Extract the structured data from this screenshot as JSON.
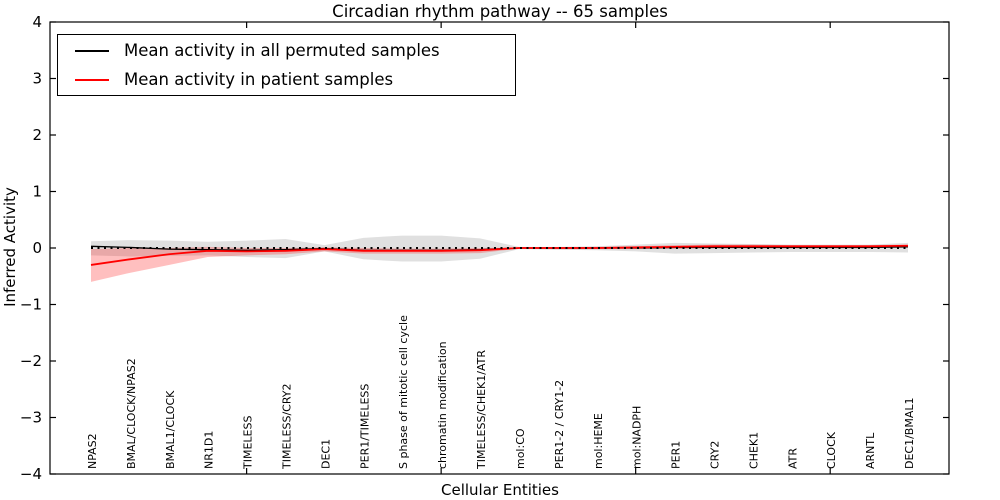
{
  "title": "Circadian rhythm pathway -- 65 samples",
  "legend": {
    "items": [
      {
        "label": "Mean activity in all permuted samples",
        "color": "#000000"
      },
      {
        "label": "Mean activity in patient samples",
        "color": "#ff0000"
      }
    ],
    "position": "upper-left",
    "border_color": "#000000"
  },
  "chart_data": {
    "type": "line",
    "title": "Circadian rhythm pathway -- 65 samples",
    "xlabel": "Cellular Entities",
    "ylabel": "Inferred Activity",
    "ylim": [
      -4,
      4
    ],
    "yticks": [
      4,
      3,
      2,
      1,
      0,
      -1,
      -2,
      -3,
      -4
    ],
    "grid": false,
    "categories": [
      "NPAS2",
      "BMAL/CLOCK/NPAS2",
      "BMAL1/CLOCK",
      "NR1D1",
      "TIMELESS",
      "TIMELESS/CRY2",
      "DEC1",
      "PER1/TIMELESS",
      "S phase of mitotic cell cycle",
      "chromatin modification",
      "TIMELESS/CHEK1/ATR",
      "mol:CO",
      "PER1-2 / CRY1-2",
      "mol:HEME",
      "mol:NADPH",
      "PER1",
      "CRY2",
      "CHEK1",
      "ATR",
      "CLOCK",
      "ARNTL",
      "DEC1/BMAL1"
    ],
    "xtick_indices": [
      4,
      9,
      14,
      19
    ],
    "zero_line": {
      "y": 0,
      "style": "dotted",
      "color": "#000000"
    },
    "series": [
      {
        "name": "Mean activity in all permuted samples",
        "color": "#000000",
        "values": [
          0.03,
          0.01,
          -0.02,
          -0.03,
          -0.04,
          -0.03,
          -0.01,
          -0.04,
          -0.04,
          -0.04,
          -0.03,
          0.0,
          0.0,
          0.0,
          0.0,
          0.01,
          0.01,
          0.01,
          0.01,
          0.01,
          0.01,
          0.02
        ]
      },
      {
        "name": "Mean activity in patient samples",
        "color": "#ff0000",
        "values": [
          -0.3,
          -0.2,
          -0.11,
          -0.05,
          -0.06,
          -0.05,
          -0.02,
          -0.05,
          -0.05,
          -0.05,
          -0.04,
          0.0,
          0.0,
          0.0,
          0.01,
          0.02,
          0.03,
          0.03,
          0.03,
          0.03,
          0.03,
          0.04
        ]
      }
    ],
    "bands": [
      {
        "name": "permuted-range",
        "color": "#000000",
        "opacity": 0.12,
        "upper": [
          0.12,
          0.14,
          0.13,
          0.11,
          0.13,
          0.16,
          0.05,
          0.18,
          0.22,
          0.22,
          0.17,
          0.02,
          0.02,
          0.03,
          0.06,
          0.09,
          0.08,
          0.07,
          0.06,
          0.06,
          0.06,
          0.09
        ],
        "lower": [
          -0.13,
          -0.15,
          -0.14,
          -0.13,
          -0.16,
          -0.18,
          -0.06,
          -0.2,
          -0.24,
          -0.24,
          -0.19,
          -0.02,
          -0.03,
          -0.04,
          -0.06,
          -0.1,
          -0.09,
          -0.08,
          -0.07,
          -0.07,
          -0.07,
          -0.08
        ]
      },
      {
        "name": "patient-range",
        "color": "#ff0000",
        "opacity": 0.25,
        "upper": [
          -0.02,
          0.0,
          0.0,
          0.02,
          0.0,
          0.0,
          0.01,
          0.0,
          -0.01,
          -0.01,
          0.0,
          0.01,
          0.01,
          0.02,
          0.03,
          0.05,
          0.06,
          0.06,
          0.05,
          0.05,
          0.05,
          0.06
        ],
        "lower": [
          -0.6,
          -0.44,
          -0.3,
          -0.16,
          -0.13,
          -0.11,
          -0.06,
          -0.1,
          -0.1,
          -0.1,
          -0.09,
          -0.01,
          -0.02,
          -0.02,
          -0.02,
          -0.01,
          0.0,
          0.0,
          0.01,
          0.01,
          0.01,
          0.02
        ]
      }
    ]
  }
}
